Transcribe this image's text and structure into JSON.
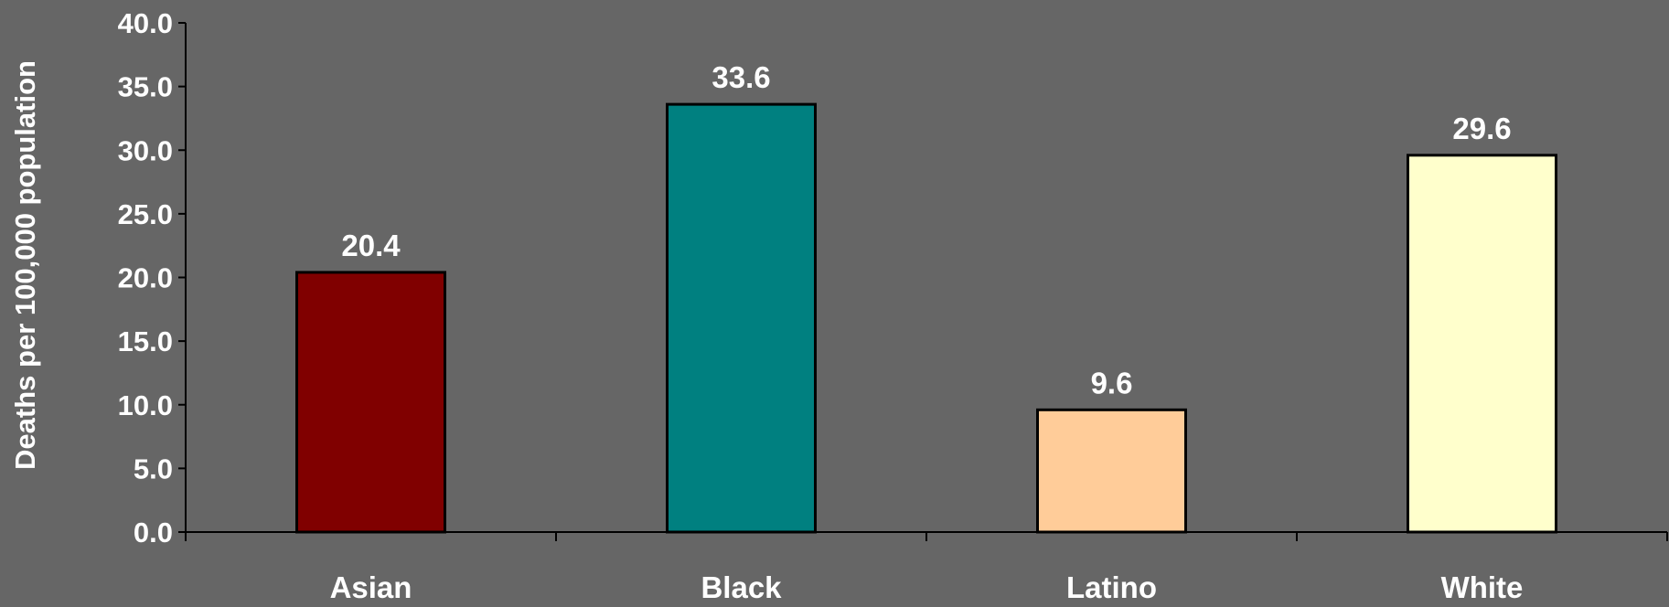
{
  "chart_data": {
    "type": "bar",
    "categories": [
      "Asian",
      "Black",
      "Latino",
      "White"
    ],
    "values": [
      20.4,
      33.6,
      9.6,
      29.6
    ],
    "data_labels": [
      "20.4",
      "33.6",
      "9.6",
      "29.6"
    ],
    "bar_colors": [
      "#800000",
      "#008080",
      "#FFCC99",
      "#FFFFCC"
    ],
    "title": "",
    "xlabel": "",
    "ylabel": "Deaths per 100,000 population",
    "ylim": [
      0,
      40
    ],
    "yticks": [
      "0.0",
      "5.0",
      "10.0",
      "15.0",
      "20.0",
      "25.0",
      "30.0",
      "35.0",
      "40.0"
    ],
    "grid": false,
    "legend": "none",
    "background_color": "#666666",
    "axis_color": "#000000"
  }
}
